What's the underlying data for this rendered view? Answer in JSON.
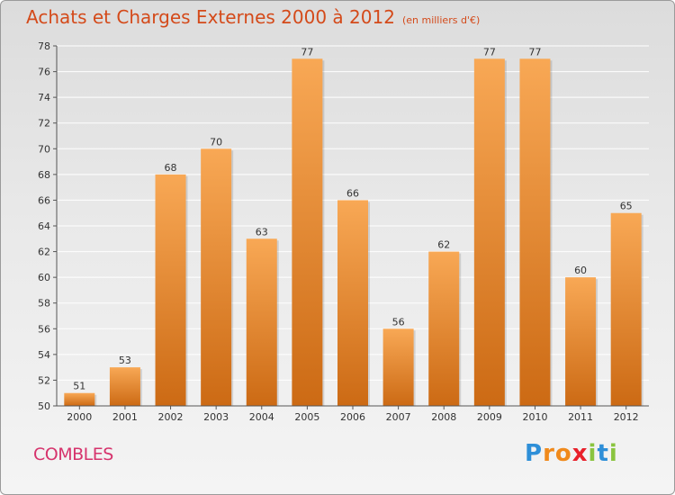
{
  "title": "Achats et Charges Externes 2000 à 2012",
  "unit": "(en milliers d'€)",
  "location": "COMBLES",
  "brand": {
    "letters": [
      "P",
      "r",
      "o",
      "x",
      "i",
      "t",
      "i"
    ],
    "colors": [
      "#2e8fd8",
      "#f08a1c",
      "#f08a1c",
      "#e8202a",
      "#8ac43f",
      "#2e8fd8",
      "#8ac43f"
    ]
  },
  "colors": {
    "bar_light": "#f8a855",
    "bar_dark": "#cc6a14",
    "grid": "#ffffff",
    "axis": "#555555"
  },
  "chart_data": {
    "type": "bar",
    "categories": [
      "2000",
      "2001",
      "2002",
      "2003",
      "2004",
      "2005",
      "2006",
      "2007",
      "2008",
      "2009",
      "2010",
      "2011",
      "2012"
    ],
    "values": [
      51,
      53,
      68,
      70,
      63,
      77,
      66,
      56,
      62,
      77,
      77,
      60,
      65
    ],
    "ylim": [
      50,
      78
    ],
    "yticks": [
      50,
      52,
      54,
      56,
      58,
      60,
      62,
      64,
      66,
      68,
      70,
      72,
      74,
      76,
      78
    ],
    "grid": true,
    "data_labels": true
  }
}
